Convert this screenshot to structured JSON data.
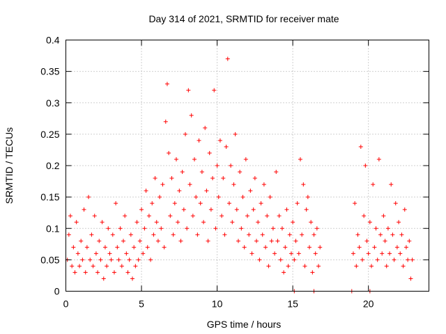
{
  "chart_data": {
    "type": "scatter",
    "title": "Day 314 of 2021, SRMTID for receiver mate",
    "xlabel": "GPS time / hours",
    "ylabel": "SRMTID / TECUs",
    "xlim": [
      0,
      24
    ],
    "ylim": [
      0,
      0.4
    ],
    "xticks": [
      0,
      5,
      10,
      15,
      20
    ],
    "xtick_labels": [
      "0",
      "5",
      "10",
      "15",
      "20"
    ],
    "yticks": [
      0,
      0.05,
      0.1,
      0.15,
      0.2,
      0.25,
      0.3,
      0.35,
      0.4
    ],
    "ytick_labels": [
      "0",
      "0.05",
      "0.1",
      "0.15",
      "0.2",
      "0.25",
      "0.3",
      "0.35",
      "0.4"
    ],
    "grid": true,
    "marker": "+",
    "color": "#ff0000",
    "series": [
      {
        "name": "SRMTID",
        "points": [
          [
            0.1,
            0.05
          ],
          [
            0.2,
            0.09
          ],
          [
            0.3,
            0.12
          ],
          [
            0.4,
            0.04
          ],
          [
            0.5,
            0.07
          ],
          [
            0.6,
            0.03
          ],
          [
            0.7,
            0.11
          ],
          [
            0.8,
            0.06
          ],
          [
            0.9,
            0.04
          ],
          [
            1.0,
            0.08
          ],
          [
            1.1,
            0.05
          ],
          [
            1.2,
            0.13
          ],
          [
            1.3,
            0.03
          ],
          [
            1.4,
            0.07
          ],
          [
            1.5,
            0.15
          ],
          [
            1.6,
            0.05
          ],
          [
            1.7,
            0.09
          ],
          [
            1.8,
            0.04
          ],
          [
            1.9,
            0.12
          ],
          [
            2.0,
            0.06
          ],
          [
            2.1,
            0.03
          ],
          [
            2.2,
            0.08
          ],
          [
            2.3,
            0.05
          ],
          [
            2.4,
            0.11
          ],
          [
            2.5,
            0.02
          ],
          [
            2.6,
            0.07
          ],
          [
            2.7,
            0.04
          ],
          [
            2.8,
            0.1
          ],
          [
            2.9,
            0.06
          ],
          [
            3.0,
            0.05
          ],
          [
            3.1,
            0.09
          ],
          [
            3.2,
            0.03
          ],
          [
            3.3,
            0.14
          ],
          [
            3.4,
            0.07
          ],
          [
            3.5,
            0.05
          ],
          [
            3.6,
            0.1
          ],
          [
            3.7,
            0.04
          ],
          [
            3.8,
            0.08
          ],
          [
            3.9,
            0.12
          ],
          [
            4.0,
            0.06
          ],
          [
            4.1,
            0.03
          ],
          [
            4.2,
            0.05
          ],
          [
            4.3,
            0.09
          ],
          [
            4.4,
            0.02
          ],
          [
            4.5,
            0.07
          ],
          [
            4.6,
            0.04
          ],
          [
            4.7,
            0.11
          ],
          [
            4.8,
            0.05
          ],
          [
            4.9,
            0.08
          ],
          [
            5.0,
            0.13
          ],
          [
            5.1,
            0.06
          ],
          [
            5.2,
            0.1
          ],
          [
            5.3,
            0.16
          ],
          [
            5.4,
            0.07
          ],
          [
            5.5,
            0.12
          ],
          [
            5.6,
            0.05
          ],
          [
            5.7,
            0.14
          ],
          [
            5.8,
            0.09
          ],
          [
            5.9,
            0.18
          ],
          [
            6.0,
            0.11
          ],
          [
            6.1,
            0.08
          ],
          [
            6.2,
            0.15
          ],
          [
            6.3,
            0.1
          ],
          [
            6.4,
            0.17
          ],
          [
            6.5,
            0.07
          ],
          [
            6.6,
            0.27
          ],
          [
            6.7,
            0.33
          ],
          [
            6.8,
            0.22
          ],
          [
            6.9,
            0.12
          ],
          [
            7.0,
            0.18
          ],
          [
            7.1,
            0.09
          ],
          [
            7.2,
            0.14
          ],
          [
            7.3,
            0.21
          ],
          [
            7.4,
            0.11
          ],
          [
            7.5,
            0.16
          ],
          [
            7.6,
            0.08
          ],
          [
            7.7,
            0.19
          ],
          [
            7.8,
            0.13
          ],
          [
            7.9,
            0.25
          ],
          [
            8.0,
            0.1
          ],
          [
            8.1,
            0.32
          ],
          [
            8.2,
            0.17
          ],
          [
            8.3,
            0.28
          ],
          [
            8.4,
            0.12
          ],
          [
            8.5,
            0.21
          ],
          [
            8.6,
            0.15
          ],
          [
            8.7,
            0.09
          ],
          [
            8.8,
            0.24
          ],
          [
            8.9,
            0.14
          ],
          [
            9.0,
            0.19
          ],
          [
            9.1,
            0.11
          ],
          [
            9.2,
            0.26
          ],
          [
            9.3,
            0.16
          ],
          [
            9.4,
            0.08
          ],
          [
            9.5,
            0.22
          ],
          [
            9.6,
            0.13
          ],
          [
            9.7,
            0.18
          ],
          [
            9.8,
            0.32
          ],
          [
            9.9,
            0.1
          ],
          [
            10.0,
            0.2
          ],
          [
            10.1,
            0.15
          ],
          [
            10.2,
            0.24
          ],
          [
            10.3,
            0.12
          ],
          [
            10.4,
            0.18
          ],
          [
            10.5,
            0.09
          ],
          [
            10.6,
            0.23
          ],
          [
            10.7,
            0.37
          ],
          [
            10.8,
            0.14
          ],
          [
            10.9,
            0.2
          ],
          [
            11.0,
            0.11
          ],
          [
            11.1,
            0.17
          ],
          [
            11.2,
            0.25
          ],
          [
            11.3,
            0.13
          ],
          [
            11.4,
            0.08
          ],
          [
            11.5,
            0.19
          ],
          [
            11.6,
            0.1
          ],
          [
            11.7,
            0.15
          ],
          [
            11.8,
            0.07
          ],
          [
            11.9,
            0.21
          ],
          [
            12.0,
            0.12
          ],
          [
            12.1,
            0.09
          ],
          [
            12.2,
            0.16
          ],
          [
            12.3,
            0.06
          ],
          [
            12.4,
            0.13
          ],
          [
            12.5,
            0.18
          ],
          [
            12.6,
            0.08
          ],
          [
            12.7,
            0.11
          ],
          [
            12.8,
            0.05
          ],
          [
            12.9,
            0.14
          ],
          [
            13.0,
            0.09
          ],
          [
            13.1,
            0.17
          ],
          [
            13.2,
            0.07
          ],
          [
            13.3,
            0.12
          ],
          [
            13.4,
            0.04
          ],
          [
            13.5,
            0.15
          ],
          [
            13.6,
            0.08
          ],
          [
            13.7,
            0.1
          ],
          [
            13.8,
            0.06
          ],
          [
            13.9,
            0.19
          ],
          [
            14.0,
            0.08
          ],
          [
            14.1,
            0.12
          ],
          [
            14.2,
            0.05
          ],
          [
            14.3,
            0.1
          ],
          [
            14.4,
            0.03
          ],
          [
            14.5,
            0.07
          ],
          [
            14.6,
            0.13
          ],
          [
            14.7,
            0.04
          ],
          [
            14.8,
            0.09
          ],
          [
            14.9,
            0.06
          ],
          [
            15.0,
            0.11
          ],
          [
            15.1,
            0.05
          ],
          [
            15.2,
            0.08
          ],
          [
            15.3,
            0.14
          ],
          [
            15.4,
            0.06
          ],
          [
            15.5,
            0.21
          ],
          [
            15.6,
            0.09
          ],
          [
            15.7,
            0.17
          ],
          [
            15.8,
            0.04
          ],
          [
            15.9,
            0.13
          ],
          [
            16.0,
            0.15
          ],
          [
            16.1,
            0.07
          ],
          [
            16.2,
            0.11
          ],
          [
            16.3,
            0.03
          ],
          [
            16.4,
            0.09
          ],
          [
            16.5,
            0.06
          ],
          [
            16.6,
            0.1
          ],
          [
            16.7,
            0.04
          ],
          [
            16.8,
            0.07
          ],
          [
            19.0,
            0.06
          ],
          [
            19.1,
            0.14
          ],
          [
            19.2,
            0.04
          ],
          [
            19.3,
            0.09
          ],
          [
            19.4,
            0.07
          ],
          [
            19.5,
            0.23
          ],
          [
            19.6,
            0.05
          ],
          [
            19.7,
            0.12
          ],
          [
            19.8,
            0.2
          ],
          [
            19.9,
            0.08
          ],
          [
            20.0,
            0.06
          ],
          [
            20.1,
            0.11
          ],
          [
            20.2,
            0.04
          ],
          [
            20.3,
            0.17
          ],
          [
            20.4,
            0.07
          ],
          [
            20.5,
            0.1
          ],
          [
            20.6,
            0.05
          ],
          [
            20.7,
            0.21
          ],
          [
            20.8,
            0.09
          ],
          [
            20.9,
            0.06
          ],
          [
            21.0,
            0.12
          ],
          [
            21.1,
            0.08
          ],
          [
            21.2,
            0.04
          ],
          [
            21.3,
            0.1
          ],
          [
            21.4,
            0.06
          ],
          [
            21.5,
            0.17
          ],
          [
            21.6,
            0.09
          ],
          [
            21.7,
            0.05
          ],
          [
            21.8,
            0.14
          ],
          [
            21.9,
            0.07
          ],
          [
            22.0,
            0.11
          ],
          [
            22.1,
            0.06
          ],
          [
            22.2,
            0.09
          ],
          [
            22.3,
            0.04
          ],
          [
            22.4,
            0.13
          ],
          [
            22.5,
            0.07
          ],
          [
            22.6,
            0.05
          ],
          [
            22.7,
            0.08
          ],
          [
            22.8,
            0.02
          ],
          [
            22.9,
            0.05
          ],
          [
            15.1,
            0.0
          ],
          [
            16.4,
            0.0
          ],
          [
            18.9,
            0.0
          ],
          [
            20.1,
            0.0
          ]
        ]
      }
    ]
  }
}
